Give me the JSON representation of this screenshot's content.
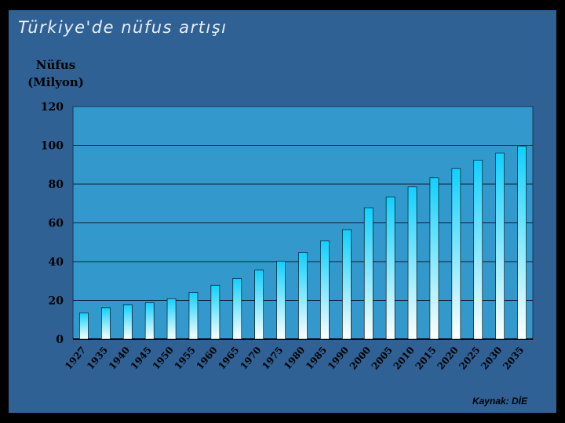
{
  "slide": {
    "title": "Türkiye'de nüfus artışı",
    "source": "Kaynak: DİE"
  },
  "colors": {
    "slide_bg": "#2f6195",
    "plot_bg": "#3398cc",
    "bar_top": "#0fd0ff",
    "bar_bottom": "#ffffff"
  },
  "chart_data": {
    "type": "bar",
    "title": "Türkiye'de nüfus artışı",
    "ylabel_line1": "Nüfus",
    "ylabel_line2": "(Milyon)",
    "xlabel": "",
    "categories": [
      "1927",
      "1935",
      "1940",
      "1945",
      "1950",
      "1955",
      "1960",
      "1965",
      "1970",
      "1975",
      "1980",
      "1985",
      "1990",
      "2000",
      "2005",
      "2010",
      "2015",
      "2020",
      "2025",
      "2030",
      "2035"
    ],
    "values": [
      13.6,
      16.2,
      17.8,
      18.8,
      20.9,
      24.1,
      27.8,
      31.4,
      35.6,
      40.3,
      44.7,
      50.7,
      56.5,
      67.8,
      73.4,
      78.5,
      83.3,
      88.0,
      92.4,
      96.1,
      99.6
    ],
    "ylim": [
      0,
      120
    ],
    "yticks": [
      0,
      20,
      40,
      60,
      80,
      100,
      120
    ],
    "grid": true,
    "legend": "none"
  }
}
